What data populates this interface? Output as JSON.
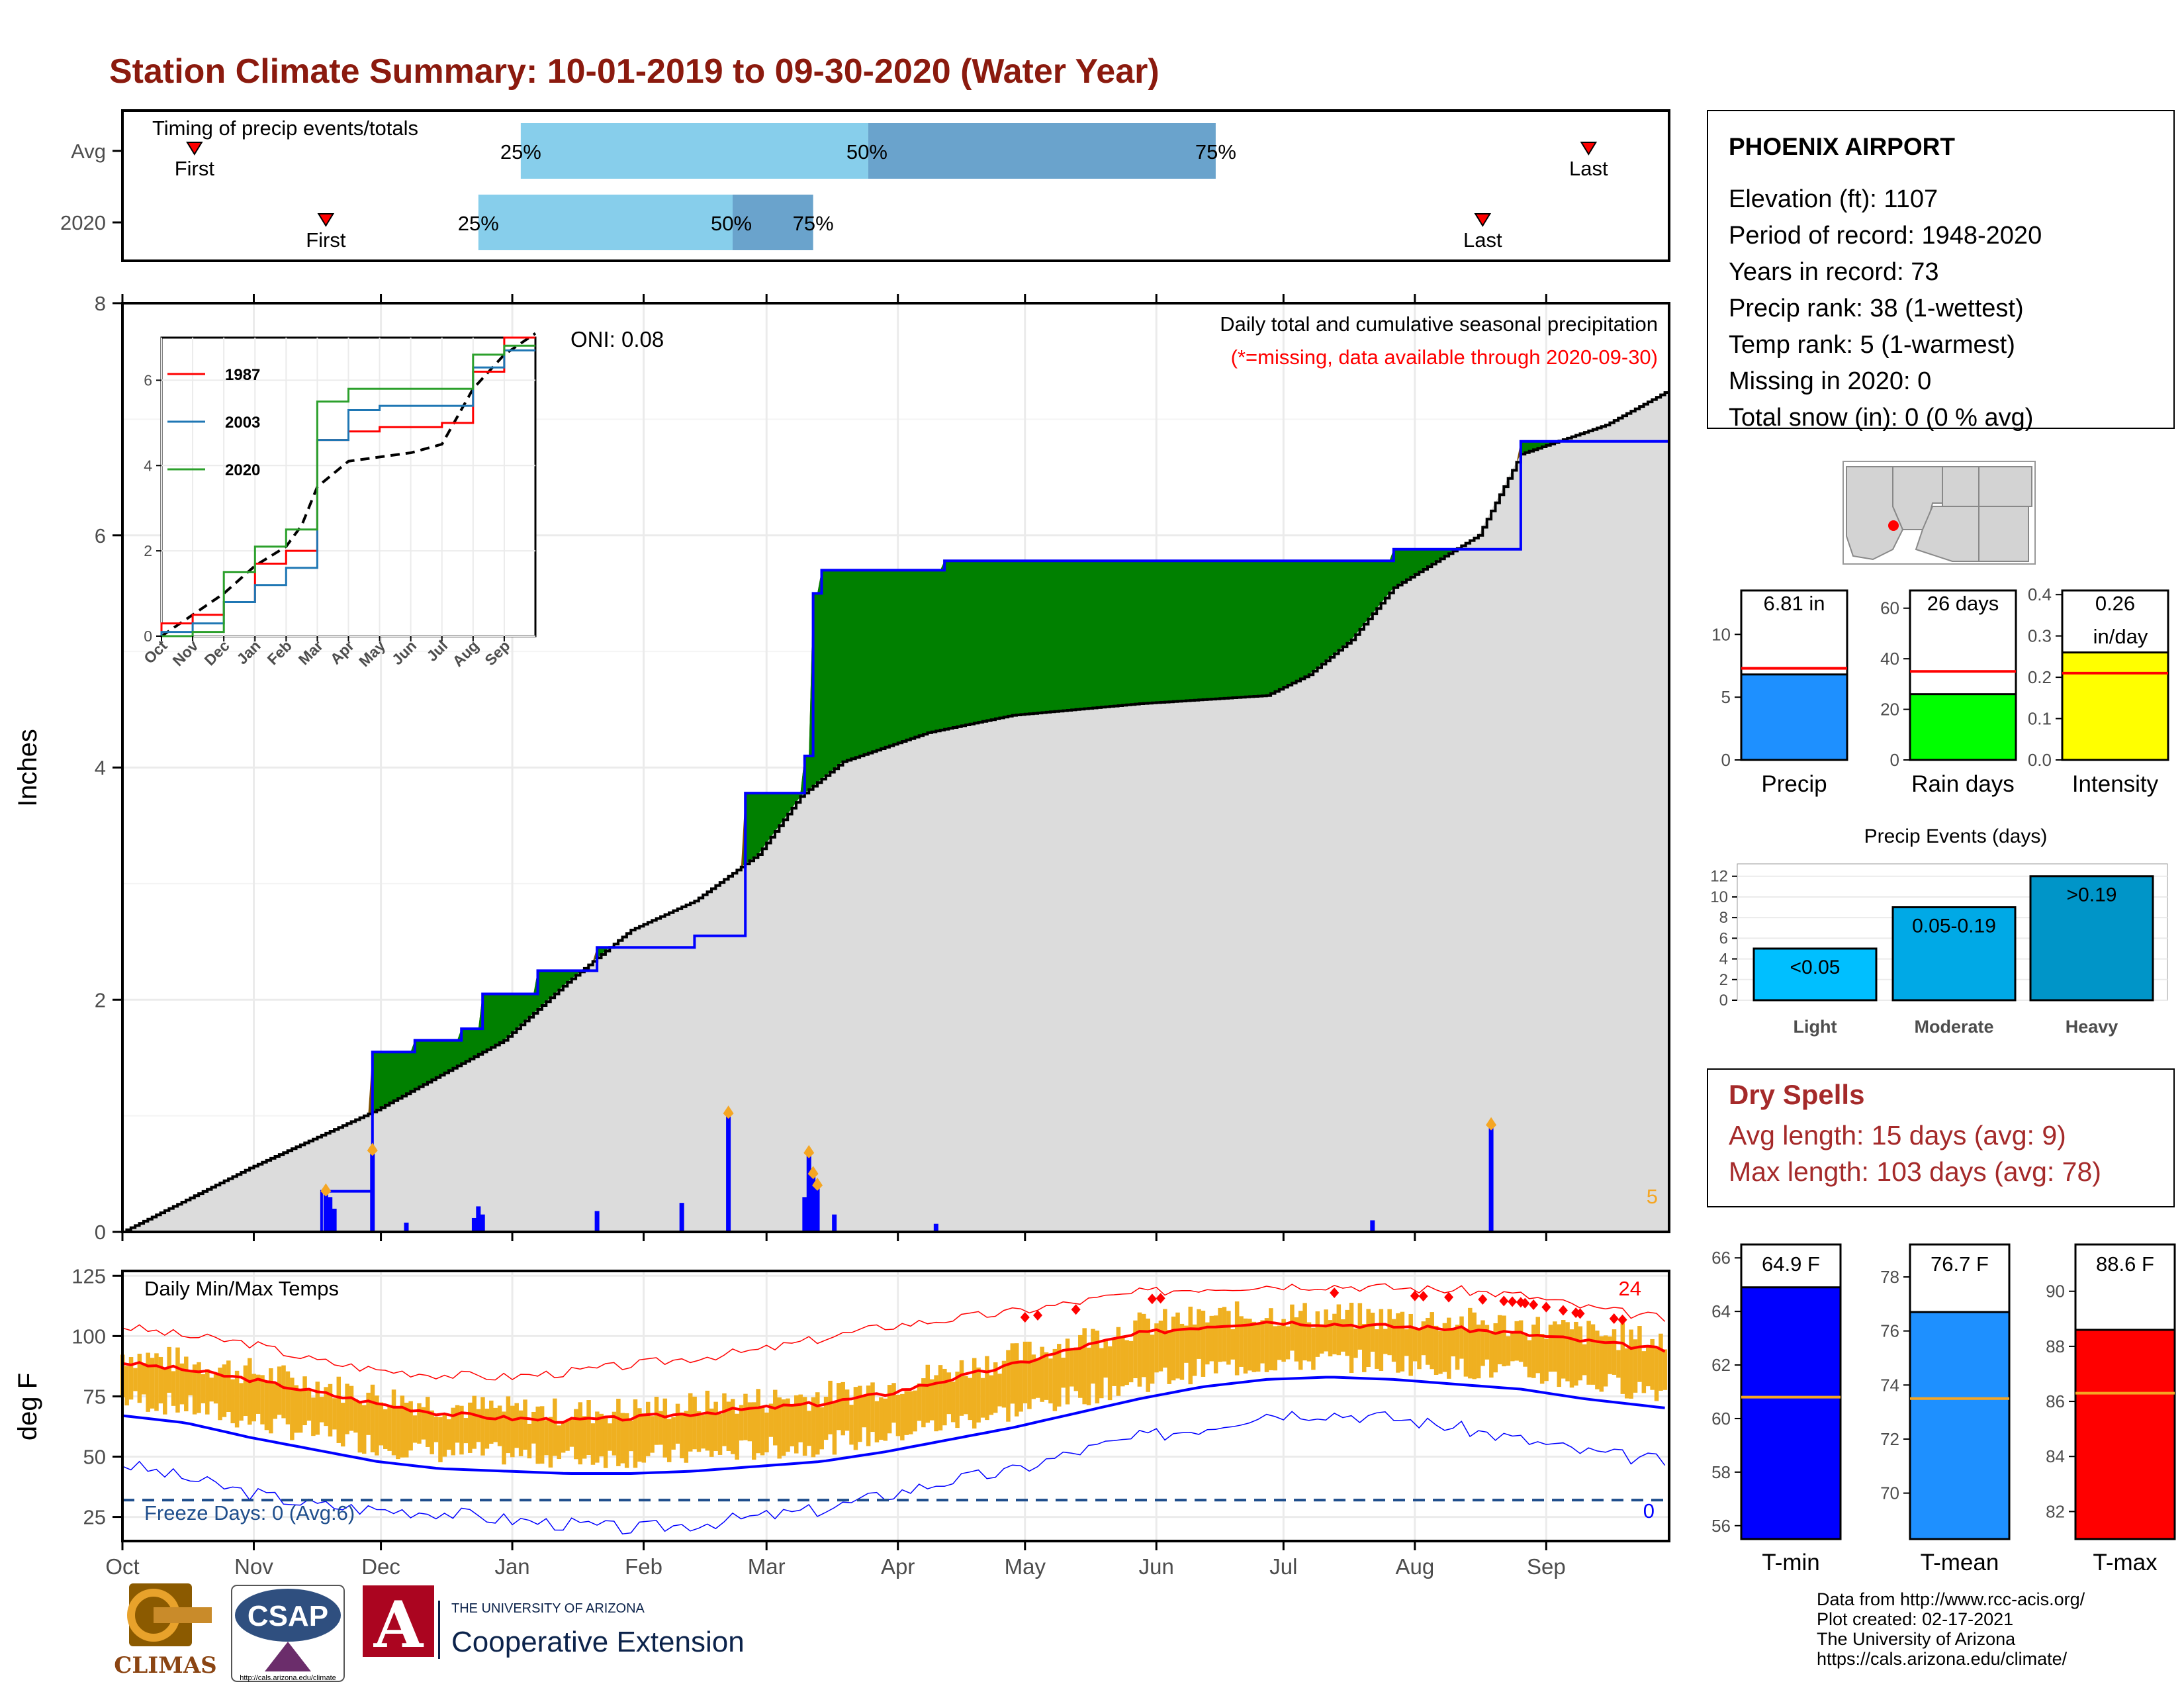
{
  "title": "Station Climate Summary: 10-01-2019 to 09-30-2020 (Water Year)",
  "colors": {
    "title": "#8b1a0e",
    "green": "#008000",
    "brown": "#7f5200",
    "normal_fill": "#dcdcdc",
    "bar_blue": "#0000ff",
    "orange": "#f5a623",
    "temp_range": "#efb021",
    "red": "#ff0000",
    "blue_line": "#0000ff",
    "light_blue": "#87ceeb",
    "mid_blue": "#6aa3cc",
    "dry_red": "#a52a2a"
  },
  "timing": {
    "label": "Timing of precip events/totals",
    "rows": [
      {
        "name": "Avg",
        "first_label": "First",
        "last_label": "Last",
        "first_day": 17,
        "last_day": 346,
        "p25_label": "25%",
        "p50_label": "50%",
        "p75_label": "75%",
        "p25_day": 94,
        "p50_day": 176,
        "p75_day": 258
      },
      {
        "name": "2020",
        "first_label": "First",
        "last_label": "Last",
        "first_day": 48,
        "last_day": 321,
        "p25_label": "25%",
        "p50_label": "50%",
        "p75_label": "75%",
        "p25_day": 84,
        "p50_day": 144,
        "p75_day": 163
      }
    ]
  },
  "precip_panel": {
    "subtitle": "Daily total and cumulative seasonal precipitation",
    "missing_note": "(*=missing, data available through 2020-09-30)",
    "ylabel": "Inches",
    "yticks": [
      "0",
      "2",
      "4",
      "6",
      "8"
    ],
    "corner_count": "5",
    "oni_label": "ONI: 0.08"
  },
  "inset": {
    "legend": [
      {
        "name": "1987",
        "color": "#ff0000"
      },
      {
        "name": "2003",
        "color": "#1f77b4"
      },
      {
        "name": "2020",
        "color": "#2ca02c"
      }
    ],
    "yticks": [
      "0",
      "2",
      "4",
      "6"
    ],
    "xticks": [
      "Oct",
      "Nov",
      "Dec",
      "Jan",
      "Feb",
      "Mar",
      "Apr",
      "May",
      "Jun",
      "Jul",
      "Aug",
      "Sep"
    ]
  },
  "temp_panel": {
    "label": "Daily Min/Max Temps",
    "ylabel": "deg F",
    "yticks": [
      "25",
      "50",
      "75",
      "100",
      "125"
    ],
    "freeze_label": "Freeze Days: 0 (Avg:6)",
    "record_high_count": "24",
    "record_low_count": "0"
  },
  "months": [
    "Oct",
    "Nov",
    "Dec",
    "Jan",
    "Feb",
    "Mar",
    "Apr",
    "May",
    "Jun",
    "Jul",
    "Aug",
    "Sep"
  ],
  "station": {
    "name": "PHOENIX AIRPORT",
    "lines": [
      "Elevation (ft): 1107",
      "Period of record: 1948-2020",
      "Years in record: 73",
      "Precip rank: 38 (1-wettest)",
      "Temp rank: 5 (1-warmest)",
      "Missing in 2020: 0",
      "Total snow (in): 0 (0 % avg)"
    ]
  },
  "mini_bars": [
    {
      "label": "Precip",
      "value_text": "6.81 in",
      "value": 6.81,
      "normal": 7.3,
      "yticks": [
        "0",
        "5",
        "10"
      ],
      "ymax": 13.5,
      "color": "#1e90ff"
    },
    {
      "label": "Rain days",
      "value_text": "26 days",
      "value": 26,
      "normal": 35,
      "yticks": [
        "0",
        "20",
        "40",
        "60"
      ],
      "ymax": 67,
      "color": "#00ff00"
    },
    {
      "label": "Intensity",
      "value_text": "0.26",
      "value_text2": "in/day",
      "value": 0.26,
      "normal": 0.21,
      "yticks": [
        "0.0",
        "0.1",
        "0.2",
        "0.3",
        "0.4"
      ],
      "ymax": 0.41,
      "color": "#ffff00"
    }
  ],
  "events": {
    "title": "Precip Events (days)",
    "yticks": [
      "0",
      "2",
      "4",
      "6",
      "8",
      "10",
      "12"
    ],
    "bars": [
      {
        "label": "Light",
        "text": "<0.05",
        "value": 5,
        "color": "#00bfff"
      },
      {
        "label": "Moderate",
        "text": "0.05-0.19",
        "value": 9,
        "color": "#00a9e6"
      },
      {
        "label": "Heavy",
        "text": ">0.19",
        "value": 12,
        "color": "#0095c8"
      }
    ]
  },
  "dry_spells": {
    "title": "Dry Spells",
    "avg": "Avg length: 15 days (avg: 9)",
    "max": "Max length: 103 days (avg: 78)"
  },
  "temp_bars": [
    {
      "label": "T-min",
      "value_text": "64.9 F",
      "value": 64.9,
      "normal": 60.8,
      "yticks": [
        "56",
        "58",
        "60",
        "62",
        "64",
        "66"
      ],
      "ymin": 55.5,
      "ymax": 66.5,
      "color": "#0000ff"
    },
    {
      "label": "T-mean",
      "value_text": "76.7 F",
      "value": 76.7,
      "normal": 73.5,
      "yticks": [
        "70",
        "72",
        "74",
        "76",
        "78"
      ],
      "ymin": 68.3,
      "ymax": 79.2,
      "color": "#1e90ff"
    },
    {
      "label": "T-max",
      "value_text": "88.6 F",
      "value": 88.6,
      "normal": 86.3,
      "yticks": [
        "82",
        "84",
        "86",
        "88",
        "90"
      ],
      "ymin": 81.0,
      "ymax": 91.7,
      "color": "#ff0000"
    }
  ],
  "footer": {
    "lines": [
      "Data from http://www.rcc-acis.org/",
      "Plot created: 02-17-2021",
      "The University of Arizona",
      "https://cals.arizona.edu/climate/"
    ]
  },
  "logos": {
    "climas": "CLIMAS",
    "csap": "CSAP",
    "csap_url": "http://cals.arizona.edu/climate",
    "ua_small": "THE UNIVERSITY OF ARIZONA",
    "ua_big": "Cooperative Extension"
  },
  "chart_data": [
    {
      "type": "area",
      "title": "Daily total and cumulative seasonal precipitation",
      "ylabel": "Inches",
      "ylim": [
        0,
        8
      ],
      "x_unit": "day of water year (0 = Oct 1)",
      "observed_cumulative": {
        "x": [
          0,
          47,
          47,
          59,
          59,
          69,
          69,
          79,
          80,
          85,
          85,
          98,
          98,
          112,
          112,
          124,
          124,
          135,
          135,
          147,
          147,
          161,
          161,
          163,
          163,
          165,
          165,
          194,
          194,
          300,
          300,
          330,
          330,
          365
        ],
        "y": [
          0,
          0,
          0.35,
          0.35,
          1.55,
          1.55,
          1.65,
          1.65,
          1.75,
          1.75,
          2.05,
          2.05,
          2.25,
          2.25,
          2.45,
          2.45,
          2.45,
          2.45,
          2.55,
          2.55,
          3.78,
          3.78,
          4.1,
          4.1,
          5.5,
          5.5,
          5.7,
          5.7,
          5.78,
          5.78,
          5.88,
          5.88,
          6.81,
          6.81
        ]
      },
      "normal_cumulative": {
        "x": [
          0,
          30,
          60,
          90,
          105,
          120,
          135,
          150,
          160,
          170,
          190,
          210,
          240,
          270,
          280,
          290,
          300,
          320,
          330,
          350,
          365
        ],
        "y": [
          0,
          0.55,
          1.05,
          1.65,
          2.15,
          2.6,
          2.85,
          3.25,
          3.75,
          4.05,
          4.3,
          4.45,
          4.55,
          4.62,
          4.8,
          5.1,
          5.55,
          6.0,
          6.7,
          6.95,
          7.25
        ]
      },
      "daily_precip": {
        "x": [
          48,
          49,
          50,
          59,
          67,
          83,
          84,
          85,
          112,
          132,
          143,
          161,
          162,
          163,
          164,
          168,
          192,
          295,
          323
        ],
        "y": [
          0.35,
          0.3,
          0.2,
          0.7,
          0.08,
          0.12,
          0.22,
          0.15,
          0.18,
          0.25,
          1.02,
          0.3,
          0.68,
          0.5,
          0.4,
          0.15,
          0.07,
          0.1,
          0.92
        ]
      },
      "annotation": "ONI: 0.08"
    },
    {
      "type": "line",
      "title": "",
      "x_unit": "month",
      "categories": [
        "Oct",
        "Nov",
        "Dec",
        "Jan",
        "Feb",
        "Mar",
        "Apr",
        "May",
        "Jun",
        "Jul",
        "Aug",
        "Sep"
      ],
      "ylim": [
        0,
        7
      ],
      "series": [
        {
          "name": "1987",
          "values": [
            0.3,
            0.5,
            0.8,
            1.7,
            2.0,
            4.6,
            4.8,
            4.9,
            4.9,
            5.0,
            6.2,
            7.0
          ]
        },
        {
          "name": "2003",
          "values": [
            0.1,
            0.3,
            0.8,
            1.2,
            1.6,
            4.6,
            5.3,
            5.4,
            5.4,
            5.4,
            6.3,
            6.7
          ]
        },
        {
          "name": "2020",
          "values": [
            0,
            0.1,
            1.5,
            2.1,
            2.5,
            5.5,
            5.8,
            5.8,
            5.8,
            5.8,
            6.6,
            6.81
          ]
        }
      ]
    },
    {
      "type": "line",
      "title": "Daily Min/Max Temps",
      "ylabel": "deg F",
      "ylim": [
        15,
        127
      ],
      "x": [
        0,
        15,
        30,
        45,
        60,
        75,
        90,
        105,
        120,
        135,
        150,
        165,
        180,
        195,
        210,
        225,
        240,
        255,
        270,
        285,
        300,
        315,
        330,
        345,
        365
      ],
      "series": [
        {
          "name": "normal_max",
          "values": [
            89,
            86,
            82,
            77,
            72,
            68,
            66,
            65,
            66,
            68,
            70,
            72,
            76,
            82,
            88,
            95,
            101,
            104,
            106,
            105,
            104,
            103,
            101,
            98,
            94
          ]
        },
        {
          "name": "normal_min",
          "values": [
            67,
            64,
            58,
            53,
            48,
            45,
            44,
            43,
            43,
            44,
            46,
            48,
            52,
            57,
            62,
            68,
            74,
            79,
            82,
            83,
            82,
            80,
            78,
            74,
            70
          ]
        },
        {
          "name": "record_max",
          "values": [
            104,
            100,
            97,
            90,
            86,
            84,
            83,
            85,
            88,
            91,
            94,
            99,
            104,
            107,
            110,
            114,
            118,
            120,
            121,
            121,
            120,
            119,
            117,
            112,
            107
          ]
        },
        {
          "name": "record_min",
          "values": [
            47,
            41,
            35,
            30,
            28,
            27,
            24,
            22,
            20,
            22,
            25,
            28,
            34,
            40,
            44,
            52,
            58,
            62,
            68,
            68,
            66,
            62,
            57,
            52,
            48
          ]
        }
      ],
      "freeze_line": 32
    }
  ]
}
